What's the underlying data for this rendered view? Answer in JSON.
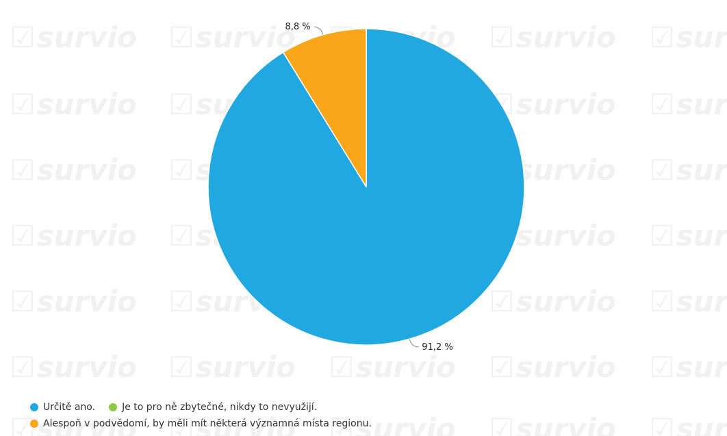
{
  "watermark": {
    "text": "survio",
    "icon": "checkbox-check-icon"
  },
  "chart_data": {
    "type": "pie",
    "slices": [
      {
        "label": "Určitě ano.",
        "value": 91.2,
        "value_label": "91,2 %",
        "color": "#21a8e0"
      },
      {
        "label": "Je to pro ně zbytečné, nikdy to nevyužijí.",
        "value": 0,
        "value_label": "",
        "color": "#8dc63f"
      },
      {
        "label": "Alespoň v podvědomí, by měli mít některá významná místa regionu.",
        "value": 8.8,
        "value_label": "8,8 %",
        "color": "#faa61a"
      }
    ],
    "start_angle_deg": 0,
    "direction": "clockwise",
    "legend": {
      "placement": "bottom-left",
      "rows": [
        [
          0,
          1
        ],
        [
          2
        ]
      ]
    }
  }
}
